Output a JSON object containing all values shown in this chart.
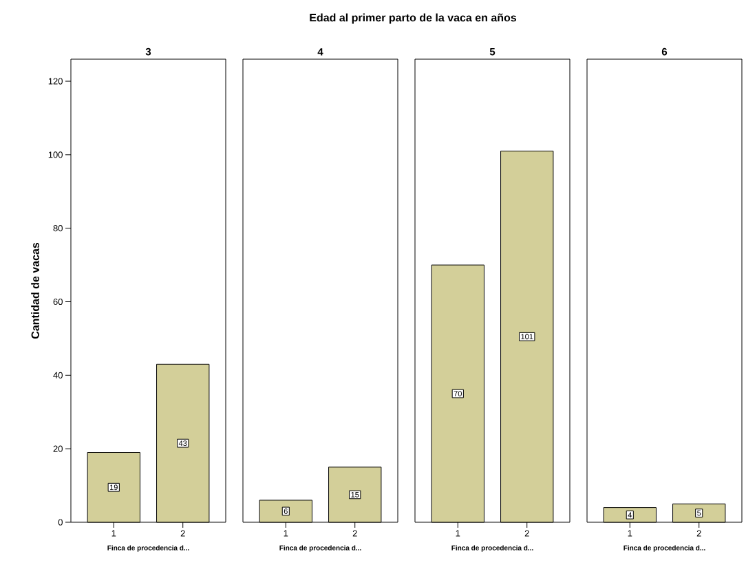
{
  "chart_data": [
    {
      "type": "bar",
      "title": "3",
      "xlabel": "Finca de procedencia d...",
      "ylabel": "Cantidad de vacas",
      "annotations": [
        "Edad al primer parto de la vaca en años"
      ],
      "categories": [
        "1",
        "2"
      ],
      "values": [
        19,
        43
      ],
      "color": "#d3cf99",
      "ylim": [
        0,
        126
      ],
      "yticks": [
        0,
        20,
        40,
        60,
        80,
        100,
        120
      ],
      "data_labels": true
    },
    {
      "type": "bar",
      "title": "4",
      "xlabel": "Finca de procedencia d...",
      "categories": [
        "1",
        "2"
      ],
      "values": [
        6,
        15
      ],
      "color": "#d3cf99",
      "ylim": [
        0,
        126
      ],
      "data_labels": true,
      "tick_labels": "x"
    },
    {
      "type": "bar",
      "title": "5",
      "xlabel": "Finca de procedencia d...",
      "categories": [
        "1",
        "2"
      ],
      "values": [
        70,
        101
      ],
      "color": "#d3cf99",
      "ylim": [
        0,
        126
      ],
      "data_labels": true,
      "tick_labels": "x"
    },
    {
      "type": "bar",
      "title": "6",
      "xlabel": "Finca de procedencia d...",
      "categories": [
        "1",
        "2"
      ],
      "values": [
        4,
        5
      ],
      "color": "#d3cf99",
      "ylim": [
        0,
        126
      ],
      "data_labels": true,
      "tick_labels": "x"
    }
  ]
}
